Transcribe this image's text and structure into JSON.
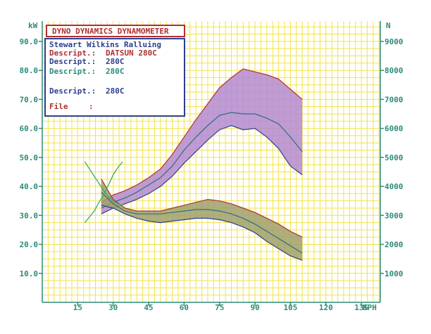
{
  "header": {
    "title": "DYNO DYNAMICS DYNAMOMETER",
    "subtitle": "Stewart Wilkins Ralluing",
    "entries": [
      {
        "label": "Descript.:",
        "value": "DATSUN 280C",
        "color": "#b03030"
      },
      {
        "label": "Descript.:",
        "value": "280C",
        "color": "#2e3f8f"
      },
      {
        "label": "Descript.:",
        "value": "280C",
        "color": "#2e8b7a"
      },
      {
        "label": "Descript.:",
        "value": "280C",
        "color": "#2e3f8f"
      }
    ],
    "file_label": "File",
    "file_sep": ":"
  },
  "colors": {
    "grid": "#f2e24a",
    "axis_text": "#2e8b7a",
    "frame": "#2e3f8f",
    "title_border": "#b03030",
    "power_band": "#b48ad0",
    "torque_band": "#a0a06a",
    "upper_edge": "#b03030",
    "mean_line": "#2e6f7a",
    "lower_edge": "#2e3f8f",
    "diagonal_line": "#3aaa6a"
  },
  "chart_data": {
    "type": "area",
    "xlabel": "KPH",
    "ylabel_left": "kW",
    "ylabel_right": "N",
    "x_ticks": [
      15,
      30,
      45,
      60,
      75,
      90,
      105,
      120,
      135
    ],
    "y_ticks_left": [
      "10.0",
      "20.0",
      "30.0",
      "40.0",
      "50.0",
      "60.0",
      "70.0",
      "80.0",
      "90.0"
    ],
    "y_ticks_right": [
      "1000",
      "2000",
      "3000",
      "4000",
      "5000",
      "6000",
      "7000",
      "8000",
      "9000"
    ],
    "xlim": [
      0,
      143
    ],
    "ylim_left": [
      0,
      97
    ],
    "grid": true,
    "series": [
      {
        "name": "",
        "x": [
          25,
          30,
          35,
          40,
          45,
          50,
          55,
          60,
          65,
          70,
          75,
          80,
          85,
          90,
          95,
          100,
          105,
          110
        ],
        "upper": [
          34.5,
          37,
          38.5,
          40.5,
          43,
          46,
          51,
          57,
          63,
          68.5,
          74,
          77.5,
          80.5,
          79.5,
          78.5,
          77,
          73.5,
          70
        ],
        "mean": [
          32.5,
          34.5,
          36,
          38,
          40.5,
          43,
          47,
          52.5,
          57,
          61,
          64.5,
          65.5,
          65,
          65,
          63.5,
          61.5,
          57,
          52
        ],
        "lower": [
          30.5,
          32.5,
          34,
          35.5,
          37.5,
          40,
          43.5,
          48,
          52,
          56,
          59.5,
          61,
          59.5,
          60,
          57,
          53,
          47,
          44
        ]
      },
      {
        "name": "",
        "x": [
          25,
          30,
          35,
          40,
          45,
          50,
          55,
          60,
          65,
          70,
          75,
          80,
          85,
          90,
          95,
          100,
          105,
          110
        ],
        "upper": [
          42.5,
          35.5,
          32.5,
          31.5,
          31.5,
          31.5,
          32.5,
          33.5,
          34.5,
          35.5,
          35,
          34,
          32.5,
          31,
          29,
          27,
          24.5,
          22.5
        ],
        "mean": [
          38,
          34,
          31.5,
          30.5,
          30.5,
          30.5,
          31,
          31.5,
          32,
          32,
          31.5,
          30.5,
          29,
          27,
          24.5,
          22,
          19.5,
          17
        ],
        "lower": [
          33.5,
          32.5,
          30.5,
          29,
          28,
          27.5,
          28,
          28.5,
          29,
          29,
          28.5,
          27.5,
          26,
          24,
          21,
          18.5,
          16,
          14.5
        ]
      },
      {
        "name": "",
        "x": [
          18,
          20,
          22,
          24,
          26,
          28,
          30,
          32,
          34
        ],
        "y": [
          27.5,
          29.5,
          31.5,
          34.5,
          37,
          40.5,
          44,
          46.5,
          48.5
        ]
      },
      {
        "name": "",
        "x": [
          18,
          20,
          22,
          24,
          26,
          28,
          30,
          32,
          34
        ],
        "y": [
          48.5,
          46,
          43.5,
          41,
          38.5,
          36.5,
          35,
          34,
          33.5
        ]
      }
    ]
  }
}
